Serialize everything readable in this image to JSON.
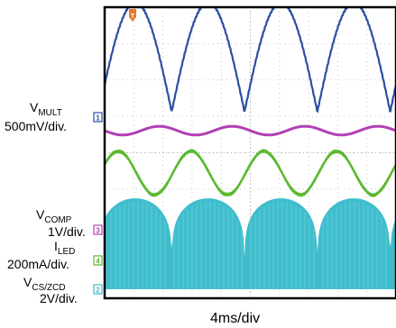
{
  "chart_data": {
    "type": "line",
    "title": "",
    "xlabel": "4ms/div",
    "time_per_division_ms": 4,
    "horizontal_divisions": 10,
    "vertical_divisions": 8,
    "grid": true,
    "trigger_marker": "T",
    "channels": [
      {
        "marker": "1",
        "name_main": "V",
        "name_sub": "MULT",
        "scale": "500mV/div.",
        "color": "#2c4fa3",
        "waveform": "rectified sine",
        "period_ms": 10,
        "peak_divisions": 3.0
      },
      {
        "marker": "3",
        "name_main": "V",
        "name_sub": "COMP",
        "scale": "1V/div.",
        "color": "#b23fb5",
        "waveform": "dc with small ripple",
        "period_ms": 10,
        "ripple_divisions": 0.12
      },
      {
        "marker": "4",
        "name_main": "I",
        "name_sub": "LED",
        "scale": "200mA/div.",
        "color": "#5ab82e",
        "waveform": "sine ripple",
        "period_ms": 10,
        "peak_to_peak_divisions": 1.2
      },
      {
        "marker": "2",
        "name_main": "V",
        "name_sub": "CS/ZCD",
        "scale": "2V/div.",
        "color": "#3fbdcc",
        "waveform": "high-frequency switching bursts",
        "period_ms": 10,
        "amplitude_divisions": 2.5
      }
    ]
  }
}
